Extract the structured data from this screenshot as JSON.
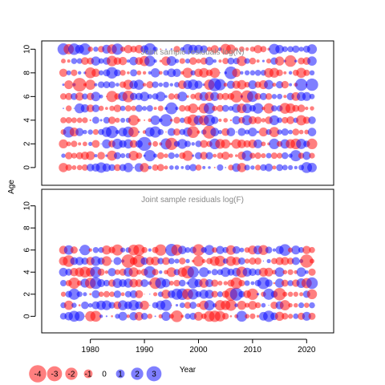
{
  "chart_data": {
    "type": "scatter",
    "encoding": "bubble",
    "colors": {
      "positive": "#0000ff",
      "negative": "#ff0000",
      "alpha": 0.5
    },
    "ylabel": "Age",
    "xlabel": "Year",
    "xlim": [
      1971,
      2025
    ],
    "years": {
      "start": 1975,
      "end": 2021
    },
    "x_ticks": [
      1980,
      1990,
      2000,
      2010,
      2020
    ],
    "y_ticks": [
      0,
      2,
      4,
      6,
      8,
      10
    ],
    "legend": {
      "placement": "bottom-left",
      "values": [
        -4,
        -3,
        -2,
        -1,
        0,
        1,
        2,
        3
      ],
      "labels": [
        "-4",
        "-3",
        "-2",
        "-1",
        "0",
        "1",
        "2",
        "3"
      ]
    },
    "panels": [
      {
        "title": "Joint sample residuals log(N)",
        "ylim": [
          -1.5,
          10.7
        ],
        "ages": [
          0,
          1,
          2,
          3,
          4,
          5,
          6,
          7,
          8,
          9,
          10
        ],
        "seed": 11
      },
      {
        "title": "Joint sample residuals log(F)",
        "ylim": [
          -1.5,
          11.5
        ],
        "ages": [
          0,
          1,
          2,
          3,
          4,
          5,
          6
        ],
        "seed": 29
      }
    ]
  }
}
